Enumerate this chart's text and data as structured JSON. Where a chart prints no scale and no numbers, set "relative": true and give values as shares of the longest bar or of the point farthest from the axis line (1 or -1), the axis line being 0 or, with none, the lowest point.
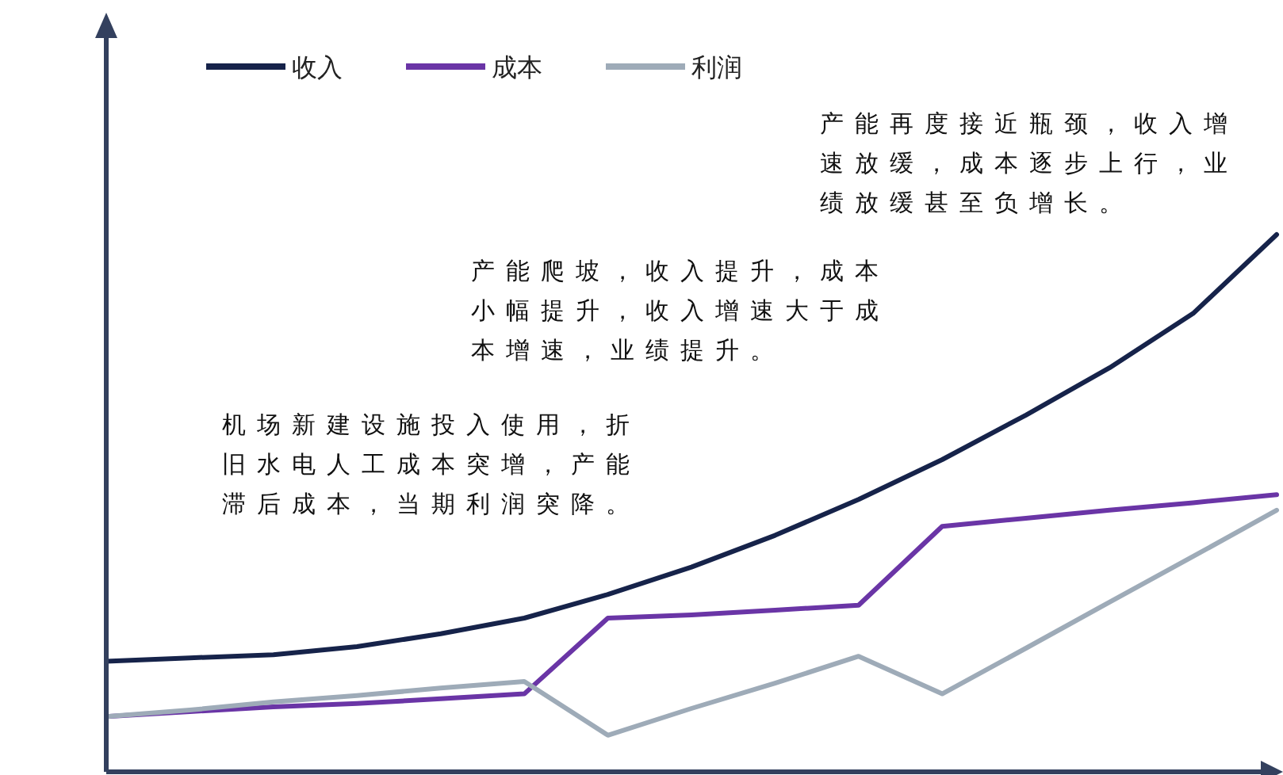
{
  "chart_data": {
    "type": "line",
    "relative": true,
    "legend": "top",
    "marker": "none",
    "line_style": "solid",
    "categories": [
      null,
      null,
      null,
      null,
      null,
      null,
      null,
      null,
      null,
      null,
      null,
      null,
      null,
      null,
      null
    ],
    "series": [
      {
        "name": "收入",
        "color": "#16234a",
        "values": [
          0.206,
          0.212,
          0.218,
          0.233,
          0.257,
          0.286,
          0.33,
          0.381,
          0.44,
          0.507,
          0.581,
          0.664,
          0.752,
          0.853,
          1
        ]
      },
      {
        "name": "成本",
        "color": "#6a35a6",
        "values": [
          0.103,
          0.112,
          0.121,
          0.127,
          0.136,
          0.145,
          0.286,
          0.292,
          0.301,
          0.31,
          0.457,
          0.472,
          0.487,
          0.501,
          0.516
        ]
      },
      {
        "name": "利润",
        "color": "#9eabb8",
        "values": [
          0.103,
          0.115,
          0.13,
          0.142,
          0.156,
          0.168,
          0.068,
          0.118,
          0.165,
          0.215,
          0.145,
          0.23,
          0.316,
          0.401,
          0.487
        ]
      }
    ],
    "annotations": [
      "产能再度接近瓶颈，收入增速放缓，成本逐步上行，业绩放缓甚至负增长。",
      "产能爬坡，收入提升，成本小幅提升，收入增速大于成本增速，业绩提升。",
      "机场新建设施投入使用，折旧水电人工成本突增，产能滞后成本，当期利润突降。"
    ]
  }
}
